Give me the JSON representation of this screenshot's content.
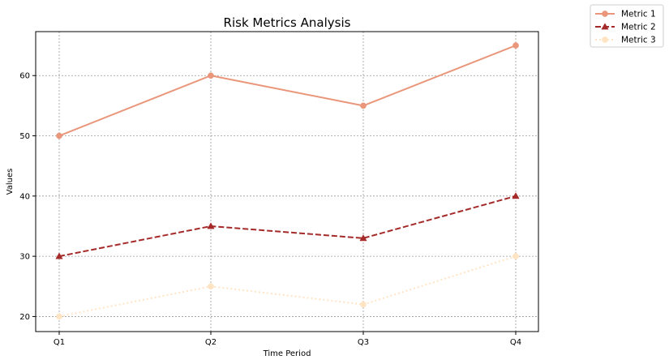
{
  "chart_data": {
    "type": "line",
    "title": "Risk Metrics Analysis",
    "xlabel": "Time Period",
    "ylabel": "Values",
    "categories": [
      "Q1",
      "Q2",
      "Q3",
      "Q4"
    ],
    "ylim": [
      17.5,
      67.3
    ],
    "yticks": [
      20,
      30,
      40,
      50,
      60
    ],
    "grid": true,
    "legend_position": "outside-top-right",
    "series": [
      {
        "name": "Metric 1",
        "values": [
          50,
          60,
          55,
          65
        ],
        "color": "#E9967A",
        "linestyle": "solid",
        "marker": "circle"
      },
      {
        "name": "Metric 2",
        "values": [
          30,
          35,
          33,
          40
        ],
        "color": "#A52A2A",
        "linestyle": "dashed",
        "marker": "triangle"
      },
      {
        "name": "Metric 3",
        "values": [
          20,
          25,
          22,
          30
        ],
        "color": "#FFE4C4",
        "linestyle": "dotted",
        "marker": "circle"
      }
    ]
  }
}
